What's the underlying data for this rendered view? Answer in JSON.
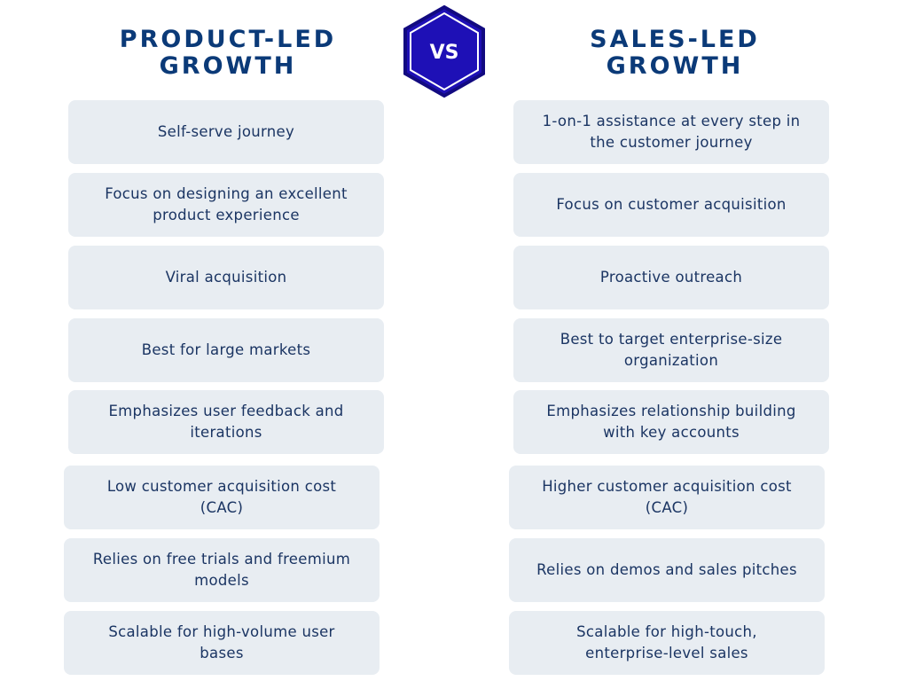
{
  "vs": "VS",
  "left": {
    "title": [
      "PRODUCT-LED",
      "GROWTH"
    ],
    "items": [
      "Self-serve journey",
      "Focus on designing an excellent product experience",
      "Viral acquisition",
      "Best for large markets",
      "Emphasizes user feedback and iterations",
      "Low customer acquisition cost (CAC)",
      "Relies on free trials and freemium models",
      "Scalable for high-volume user bases"
    ]
  },
  "right": {
    "title": [
      "SALES-LED",
      "GROWTH"
    ],
    "items": [
      "1-on-1 assistance at every step in the customer journey",
      "Focus on customer acquisition",
      "Proactive outreach",
      "Best to target enterprise-size organization",
      "Emphasizes relationship building with key accounts",
      "Higher customer acquisition cost (CAC)",
      "Relies on demos and sales pitches",
      "Scalable for high-touch, enterprise-level sales"
    ]
  }
}
